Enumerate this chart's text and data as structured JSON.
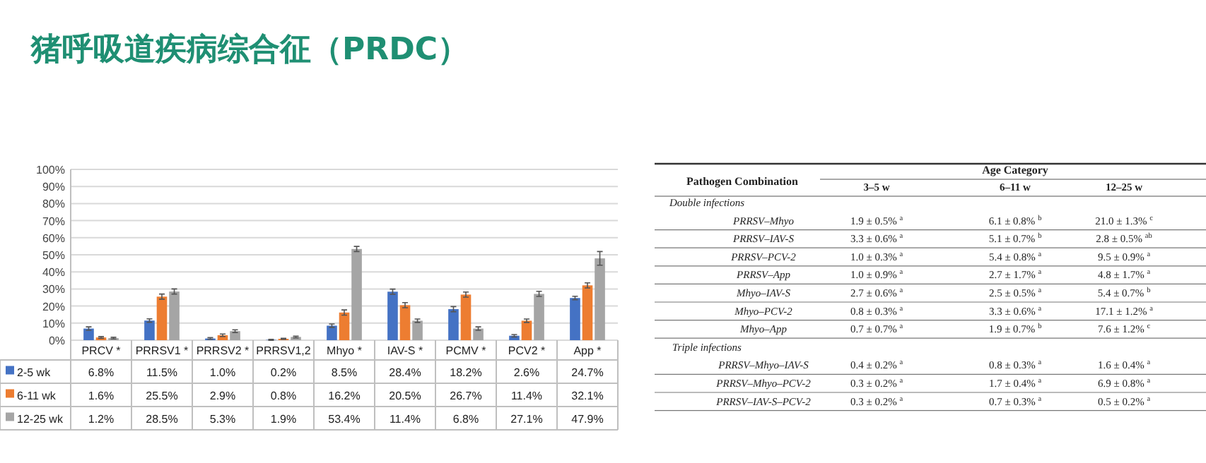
{
  "chart_data": [
    {
      "type": "bar",
      "title": "猪呼吸道疾病综合征（PRDC）",
      "categories": [
        "PRCV *",
        "PRRSV1 *",
        "PRRSV2 *",
        "PRRSV1,2",
        "Mhyo *",
        "IAV-S *",
        "PCMV *",
        "PCV2 *",
        "App *"
      ],
      "ylim": [
        0,
        100
      ],
      "yticks": [
        {
          "value": 0,
          "label": "0%"
        },
        {
          "value": 10,
          "label": "10%"
        },
        {
          "value": 20,
          "label": "20%"
        },
        {
          "value": 30,
          "label": "30%"
        },
        {
          "value": 40,
          "label": "40%"
        },
        {
          "value": 50,
          "label": "50%"
        },
        {
          "value": 60,
          "label": "60%"
        },
        {
          "value": 70,
          "label": "70%"
        },
        {
          "value": 80,
          "label": "80%"
        },
        {
          "value": 90,
          "label": "90%"
        },
        {
          "value": 100,
          "label": "100%"
        }
      ],
      "grid": "y",
      "legend": "bottom left",
      "series": [
        {
          "name": "2-5 wk",
          "color": "#4472c4",
          "values": [
            6.8,
            11.5,
            1.0,
            0.2,
            8.5,
            28.4,
            18.2,
            2.6,
            24.7
          ],
          "errors": [
            1,
            1,
            0.5,
            0.3,
            1,
            1.5,
            1.5,
            0.7,
            1
          ],
          "value_labels": [
            "6.8%",
            "11.5%",
            "1.0%",
            "0.2%",
            "8.5%",
            "28.4%",
            "18.2%",
            "2.6%",
            "24.7%"
          ]
        },
        {
          "name": "6-11 wk",
          "color": "#ed7d31",
          "values": [
            1.6,
            25.5,
            2.9,
            0.8,
            16.2,
            20.5,
            26.7,
            11.4,
            32.1
          ],
          "errors": [
            0.5,
            1.5,
            0.7,
            0.3,
            1.5,
            1.5,
            1.5,
            1,
            1.5
          ],
          "value_labels": [
            "1.6%",
            "25.5%",
            "2.9%",
            "0.8%",
            "16.2%",
            "20.5%",
            "26.7%",
            "11.4%",
            "32.1%"
          ]
        },
        {
          "name": "12-25 wk",
          "color": "#a5a5a5",
          "values": [
            1.2,
            28.5,
            5.3,
            1.9,
            53.4,
            11.4,
            6.8,
            27.1,
            47.9
          ],
          "errors": [
            0.5,
            1.5,
            0.8,
            0.5,
            1.5,
            1,
            1,
            1.5,
            4
          ],
          "value_labels": [
            "1.2%",
            "28.5%",
            "5.3%",
            "1.9%",
            "53.4%",
            "11.4%",
            "6.8%",
            "27.1%",
            "47.9%"
          ]
        }
      ]
    },
    {
      "type": "other",
      "xlabel": "Age Category",
      "ylabel": "Pathogen Combination",
      "categories": [
        "3–5 w",
        "6–11 w",
        "12–25 w"
      ],
      "y_categories": [
        "Double infections",
        "PRRSV–Mhyo",
        "PRRSV–IAV-S",
        "PRRSV–PCV-2",
        "PRRSV–App",
        "Mhyo–IAV-S",
        "Mhyo–PCV-2",
        "Mhyo–App",
        "Triple infections",
        "PRRSV–Mhyo–IAV-S",
        "PRRSV–Mhyo–PCV-2",
        "PRRSV–IAV-S–PCV-2"
      ],
      "cell_labels": [
        null,
        [
          "1.9 ± 0.5% $^{a}$",
          "6.1 ± 0.8% $^{b}$",
          "21.0 ± 1.3% $^{c}$"
        ],
        [
          "3.3 ± 0.6% $^{a}$",
          "5.1 ± 0.7% $^{b}$",
          "2.8 ± 0.5% $^{ab}$"
        ],
        [
          "1.0 ± 0.3% $^{a}$",
          "5.4 ± 0.8% $^{a}$",
          "9.5 ± 0.9% $^{a}$"
        ],
        [
          "1.0 ± 0.9% $^{a}$",
          "2.7 ± 1.7% $^{a}$",
          "4.8 ± 1.7% $^{a}$"
        ],
        [
          "2.7 ± 0.6% $^{a}$",
          "2.5 ± 0.5% $^{a}$",
          "5.4 ± 0.7% $^{b}$"
        ],
        [
          "0.8 ± 0.3% $^{a}$",
          "3.3 ± 0.6% $^{a}$",
          "17.1 ± 1.2% $^{a}$"
        ],
        [
          "0.7 ± 0.7% $^{a}$",
          "1.9 ± 0.7% $^{b}$",
          "7.6 ± 1.2% $^{c}$"
        ],
        null,
        [
          "0.4 ± 0.2% $^{a}$",
          "0.8 ± 0.3% $^{a}$",
          "1.6 ± 0.4% $^{a}$"
        ],
        [
          "0.3 ± 0.2% $^{a}$",
          "1.7 ± 0.4% $^{a}$",
          "6.9 ± 0.8% $^{a}$"
        ],
        [
          "0.3 ± 0.2% $^{a}$",
          "0.7 ± 0.3% $^{a}$",
          "0.5 ± 0.2% $^{a}$"
        ]
      ]
    }
  ]
}
